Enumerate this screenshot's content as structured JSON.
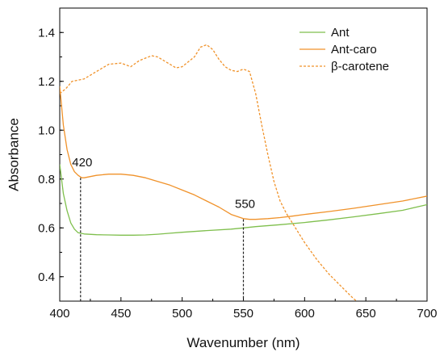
{
  "chart_data": {
    "type": "line",
    "xlabel": "Wavenumber (nm)",
    "ylabel": "Absorbance",
    "xlim": [
      400,
      700
    ],
    "ylim": [
      0.3,
      1.5
    ],
    "x_ticks": [
      "400",
      "450",
      "500",
      "550",
      "600",
      "650",
      "700"
    ],
    "y_ticks": [
      "0.4",
      "0.6",
      "0.8",
      "1.0",
      "1.2",
      "1.4"
    ],
    "legend_position": "top-right",
    "series": [
      {
        "name": "Ant",
        "color": "#7fbf4d",
        "style": "solid",
        "points": [
          [
            400,
            0.86
          ],
          [
            403,
            0.74
          ],
          [
            406,
            0.67
          ],
          [
            409,
            0.62
          ],
          [
            412,
            0.595
          ],
          [
            415,
            0.58
          ],
          [
            420,
            0.575
          ],
          [
            430,
            0.572
          ],
          [
            440,
            0.571
          ],
          [
            450,
            0.57
          ],
          [
            460,
            0.57
          ],
          [
            470,
            0.571
          ],
          [
            480,
            0.574
          ],
          [
            490,
            0.578
          ],
          [
            500,
            0.582
          ],
          [
            520,
            0.589
          ],
          [
            540,
            0.595
          ],
          [
            550,
            0.6
          ],
          [
            560,
            0.605
          ],
          [
            580,
            0.613
          ],
          [
            600,
            0.622
          ],
          [
            620,
            0.633
          ],
          [
            640,
            0.645
          ],
          [
            660,
            0.658
          ],
          [
            680,
            0.672
          ],
          [
            700,
            0.695
          ]
        ]
      },
      {
        "name": "Ant-caro",
        "color": "#f0922a",
        "style": "solid",
        "points": [
          [
            400,
            1.18
          ],
          [
            403,
            1.02
          ],
          [
            406,
            0.92
          ],
          [
            409,
            0.86
          ],
          [
            412,
            0.83
          ],
          [
            415,
            0.815
          ],
          [
            418,
            0.805
          ],
          [
            420,
            0.805
          ],
          [
            425,
            0.81
          ],
          [
            430,
            0.815
          ],
          [
            440,
            0.82
          ],
          [
            450,
            0.82
          ],
          [
            460,
            0.815
          ],
          [
            470,
            0.805
          ],
          [
            480,
            0.79
          ],
          [
            490,
            0.775
          ],
          [
            500,
            0.755
          ],
          [
            510,
            0.735
          ],
          [
            520,
            0.71
          ],
          [
            530,
            0.685
          ],
          [
            540,
            0.655
          ],
          [
            550,
            0.638
          ],
          [
            555,
            0.635
          ],
          [
            560,
            0.635
          ],
          [
            570,
            0.638
          ],
          [
            580,
            0.642
          ],
          [
            590,
            0.648
          ],
          [
            600,
            0.655
          ],
          [
            620,
            0.667
          ],
          [
            640,
            0.68
          ],
          [
            660,
            0.695
          ],
          [
            680,
            0.71
          ],
          [
            700,
            0.73
          ]
        ]
      },
      {
        "name": "β-carotene",
        "color": "#f0922a",
        "style": "dashed",
        "points": [
          [
            400,
            1.15
          ],
          [
            405,
            1.17
          ],
          [
            410,
            1.2
          ],
          [
            420,
            1.21
          ],
          [
            430,
            1.24
          ],
          [
            440,
            1.27
          ],
          [
            450,
            1.275
          ],
          [
            458,
            1.26
          ],
          [
            465,
            1.285
          ],
          [
            475,
            1.305
          ],
          [
            480,
            1.3
          ],
          [
            490,
            1.27
          ],
          [
            495,
            1.255
          ],
          [
            500,
            1.26
          ],
          [
            510,
            1.3
          ],
          [
            515,
            1.34
          ],
          [
            520,
            1.35
          ],
          [
            525,
            1.33
          ],
          [
            530,
            1.29
          ],
          [
            535,
            1.26
          ],
          [
            540,
            1.245
          ],
          [
            545,
            1.24
          ],
          [
            550,
            1.25
          ],
          [
            555,
            1.24
          ],
          [
            560,
            1.15
          ],
          [
            565,
            1.02
          ],
          [
            570,
            0.9
          ],
          [
            575,
            0.79
          ],
          [
            580,
            0.71
          ],
          [
            585,
            0.66
          ],
          [
            590,
            0.62
          ],
          [
            600,
            0.54
          ],
          [
            610,
            0.47
          ],
          [
            620,
            0.41
          ],
          [
            630,
            0.36
          ],
          [
            640,
            0.31
          ],
          [
            645,
            0.29
          ]
        ]
      }
    ],
    "annotations": [
      {
        "text": "420",
        "x": 417,
        "y": 0.805
      },
      {
        "text": "550",
        "x": 550,
        "y": 0.635
      }
    ]
  }
}
